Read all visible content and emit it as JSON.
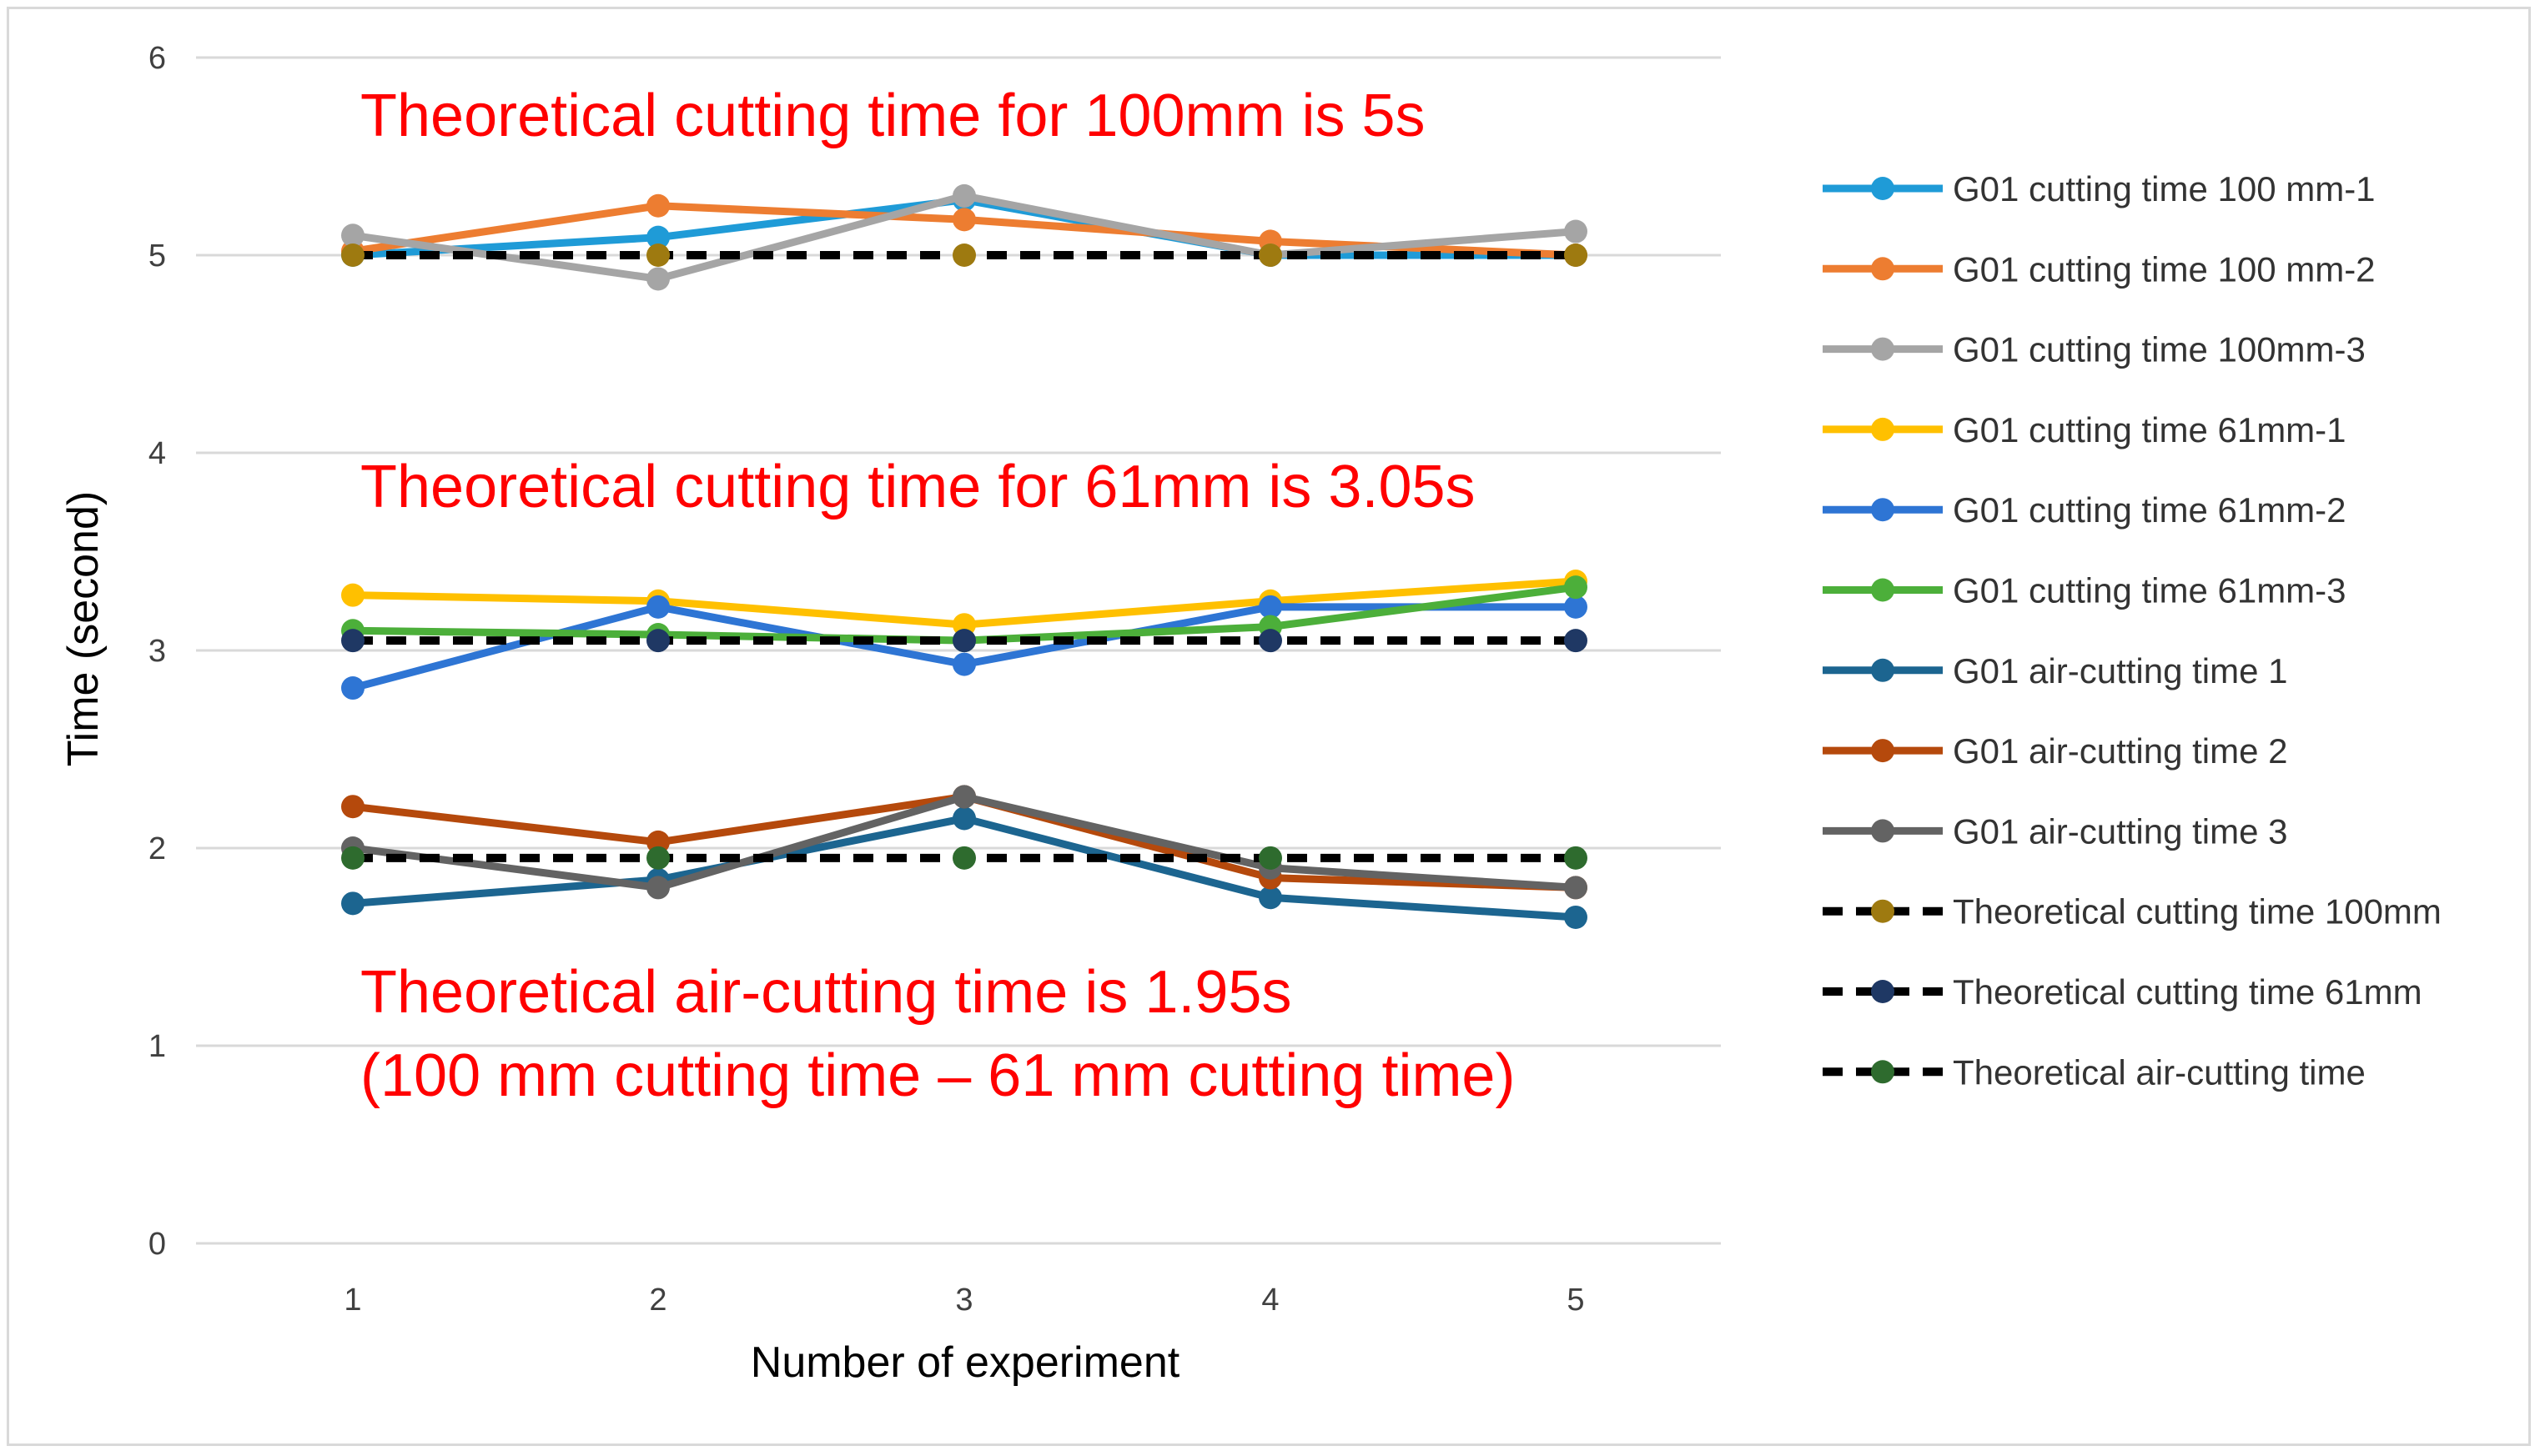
{
  "chart_data": {
    "type": "line",
    "title": "",
    "xlabel": "Number of experiment",
    "ylabel": "Time (second)",
    "ylim": [
      0,
      6
    ],
    "yticks": [
      "0",
      "1",
      "2",
      "3",
      "4",
      "5",
      "6"
    ],
    "categories": [
      "1",
      "2",
      "3",
      "4",
      "5"
    ],
    "grid": true,
    "legend_position": "right",
    "series": [
      {
        "name": "G01 cutting time 100 mm-1",
        "color": "#1f9bd7",
        "dashed": false,
        "values": [
          5.0,
          5.09,
          5.28,
          5.0,
          5.0
        ]
      },
      {
        "name": "G01 cutting time 100 mm-2",
        "color": "#ed7d31",
        "dashed": false,
        "values": [
          5.02,
          5.25,
          5.18,
          5.07,
          5.0
        ]
      },
      {
        "name": "G01 cutting time 100mm-3",
        "color": "#a5a5a5",
        "dashed": false,
        "values": [
          5.1,
          4.88,
          5.3,
          5.0,
          5.12
        ]
      },
      {
        "name": "G01 cutting time 61mm-1",
        "color": "#ffc000",
        "dashed": false,
        "values": [
          3.28,
          3.25,
          3.13,
          3.25,
          3.35
        ]
      },
      {
        "name": "G01 cutting time 61mm-2",
        "color": "#2e75d4",
        "dashed": false,
        "values": [
          2.81,
          3.22,
          2.93,
          3.22,
          3.22
        ]
      },
      {
        "name": "G01 cutting time 61mm-3",
        "color": "#4caf3a",
        "dashed": false,
        "values": [
          3.1,
          3.08,
          3.05,
          3.12,
          3.32
        ]
      },
      {
        "name": "G01 air-cutting time 1",
        "color": "#1c6590",
        "dashed": false,
        "values": [
          1.72,
          1.84,
          2.15,
          1.75,
          1.65
        ]
      },
      {
        "name": "G01 air-cutting time 2",
        "color": "#b5490c",
        "dashed": false,
        "values": [
          2.21,
          2.03,
          2.26,
          1.85,
          1.8
        ]
      },
      {
        "name": "G01 air-cutting time 3",
        "color": "#636363",
        "dashed": false,
        "values": [
          2.0,
          1.8,
          2.26,
          1.9,
          1.8
        ]
      },
      {
        "name": "Theoretical cutting time 100mm",
        "color": "#000000",
        "marker_color": "#9e7a10",
        "dashed": true,
        "values": [
          5.0,
          5.0,
          5.0,
          5.0,
          5.0
        ]
      },
      {
        "name": "Theoretical cutting time 61mm",
        "color": "#000000",
        "marker_color": "#1f3864",
        "dashed": true,
        "values": [
          3.05,
          3.05,
          3.05,
          3.05,
          3.05
        ]
      },
      {
        "name": "Theoretical air-cutting time",
        "color": "#000000",
        "marker_color": "#2e6b2e",
        "dashed": true,
        "values": [
          1.95,
          1.95,
          1.95,
          1.95,
          1.95
        ]
      }
    ],
    "annotations": [
      "Theoretical cutting time for 100mm is 5s",
      "Theoretical cutting time for 61mm is 3.05s",
      "Theoretical air-cutting time is 1.95s",
      "(100 mm cutting time – 61 mm cutting time)"
    ],
    "annotation_color": "#ff0000"
  }
}
